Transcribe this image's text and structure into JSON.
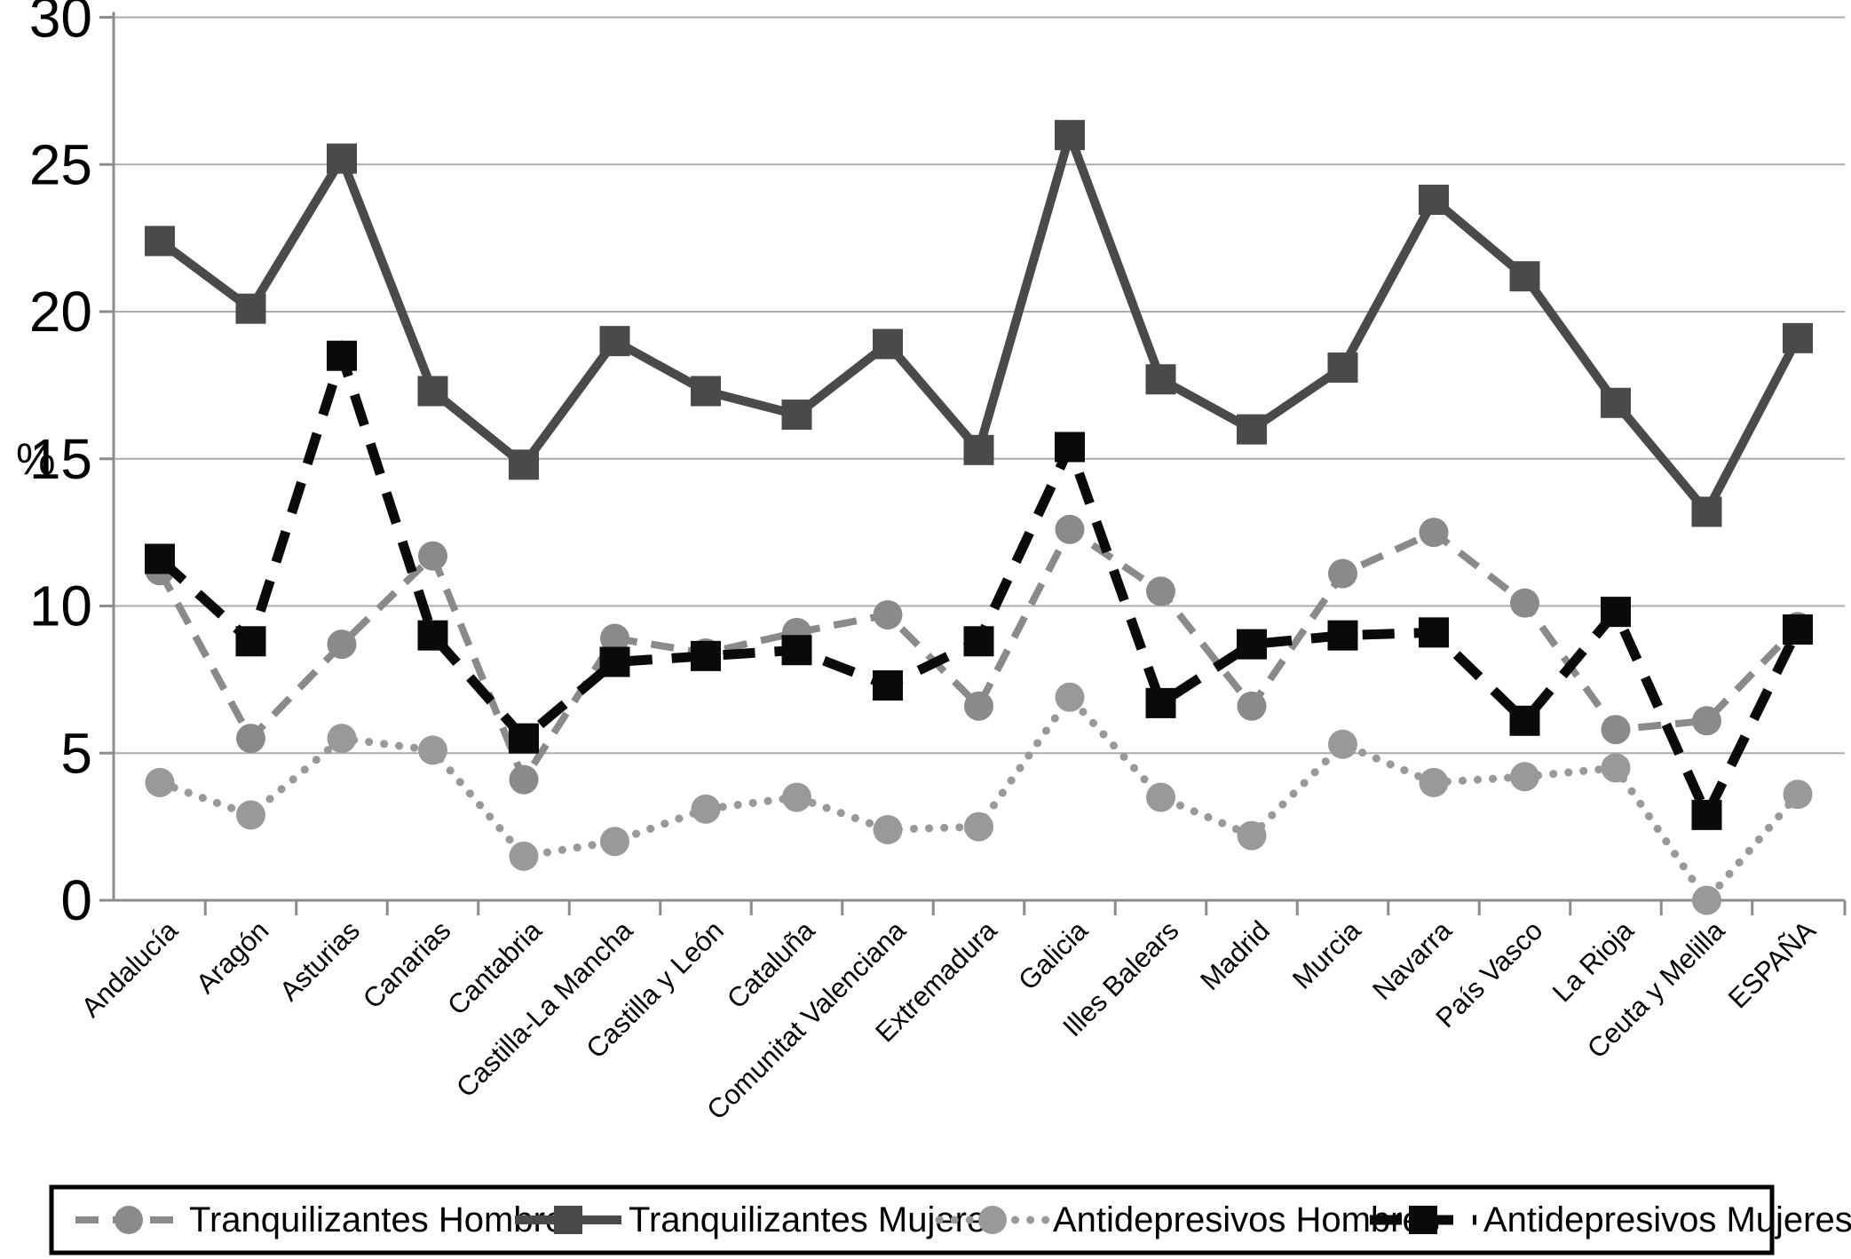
{
  "chart_data": {
    "type": "line",
    "title": "",
    "xlabel": "",
    "ylabel": "%",
    "ylim": [
      0,
      30
    ],
    "yticks": [
      0,
      5,
      10,
      15,
      20,
      25,
      30
    ],
    "grid": "horizontal",
    "legend_position": "bottom",
    "background_color": "#ffffff",
    "gridline_color": "#ababab",
    "axis_color": "#8c8c8c",
    "legend_border_color": "#000000",
    "categories": [
      "Andalucía",
      "Aragón",
      "Asturias",
      "Canarias",
      "Cantabria",
      "Castilla-La Mancha",
      "Castilla y León",
      "Cataluña",
      "Comunitat Valenciana",
      "Extremadura",
      "Galicia",
      "Illes Balears",
      "Madrid",
      "Murcia",
      "Navarra",
      "País Vasco",
      "La Rioja",
      "Ceuta y Melilla",
      "ESPAÑA"
    ],
    "series": [
      {
        "name": "Tranquilizantes Hombres",
        "color": "#8a8a8a",
        "line": "dashed",
        "marker": "circle",
        "values": [
          11.2,
          5.5,
          8.7,
          11.7,
          4.1,
          8.9,
          8.4,
          9.1,
          9.7,
          6.6,
          12.6,
          10.5,
          6.6,
          11.1,
          12.5,
          10.1,
          5.8,
          6.1,
          9.3
        ]
      },
      {
        "name": "Antidepresivos Hombres",
        "color": "#999999",
        "line": "dotted",
        "marker": "circle",
        "values": [
          4.0,
          2.9,
          5.5,
          5.1,
          1.5,
          2.0,
          3.1,
          3.5,
          2.4,
          2.5,
          6.9,
          3.5,
          2.2,
          5.3,
          4.0,
          4.2,
          4.5,
          0.0,
          3.6
        ]
      },
      {
        "name": "Tranquilizantes Mujeres",
        "color": "#4a4a4a",
        "line": "solid",
        "marker": "square",
        "values": [
          22.4,
          20.1,
          25.2,
          17.3,
          14.8,
          19.0,
          17.3,
          16.5,
          18.9,
          15.3,
          26.0,
          17.7,
          16.0,
          18.1,
          23.8,
          21.2,
          16.9,
          13.2,
          19.1
        ]
      },
      {
        "name": "Antidepresivos Mujeres",
        "color": "#0a0a0a",
        "line": "long-dash",
        "marker": "square",
        "values": [
          11.6,
          8.8,
          18.5,
          9.0,
          5.5,
          8.1,
          8.3,
          8.5,
          7.3,
          8.8,
          15.4,
          6.7,
          8.7,
          9.0,
          9.1,
          6.1,
          9.8,
          2.9,
          9.2
        ]
      }
    ],
    "legend_order": [
      "Tranquilizantes Hombres",
      "Tranquilizantes Mujeres",
      "Antidepresivos Hombres",
      "Antidepresivos Mujeres"
    ]
  }
}
